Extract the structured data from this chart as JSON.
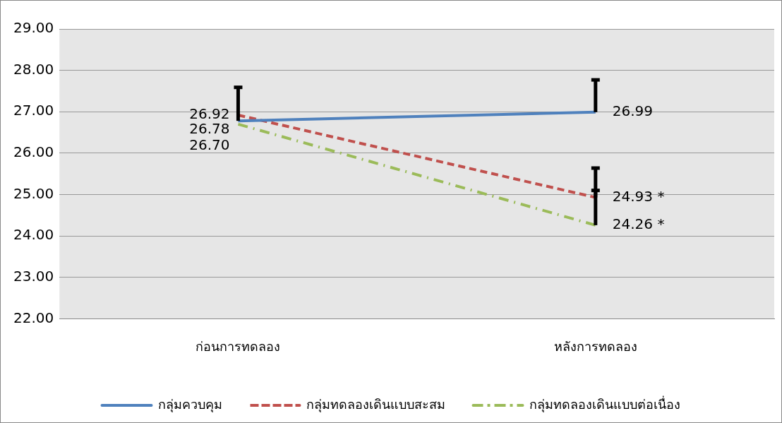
{
  "chart_data": {
    "type": "line",
    "categories": [
      "ก่อนการทดลอง",
      "หลังการทดลอง"
    ],
    "series": [
      {
        "name": "กลุ่มควบคุม",
        "color": "#4f81bd",
        "line_style": "solid",
        "values": [
          26.78,
          26.99
        ],
        "value_labels": [
          "26.78",
          "26.99"
        ],
        "errors": [
          [
            26.78,
            27.59
          ],
          [
            26.99,
            27.77
          ]
        ]
      },
      {
        "name": "กลุ่มทดลองเดินแบบสะสม",
        "color": "#c0504d",
        "line_style": "dashed",
        "values": [
          26.92,
          24.93
        ],
        "value_labels": [
          "26.92",
          "24.93 *"
        ],
        "errors": [
          null,
          [
            24.93,
            25.64
          ]
        ]
      },
      {
        "name": "กลุ่มทดลองเดินแบบต่อเนื่อง",
        "color": "#9bbb59",
        "line_style": "dashdot",
        "values": [
          26.7,
          24.26
        ],
        "value_labels": [
          "26.70",
          "24.26 *"
        ],
        "errors": [
          null,
          [
            24.26,
            25.1
          ]
        ]
      }
    ],
    "ylim": [
      22,
      29
    ],
    "yticks": [
      {
        "value": 22,
        "label": "22.00"
      },
      {
        "value": 23,
        "label": "23.00"
      },
      {
        "value": 24,
        "label": "24.00"
      },
      {
        "value": 25,
        "label": "25.00"
      },
      {
        "value": 26,
        "label": "26.00"
      },
      {
        "value": 27,
        "label": "27.00"
      },
      {
        "value": 28,
        "label": "28.00"
      },
      {
        "value": 29,
        "label": "29.00"
      }
    ],
    "grid": "y",
    "legend": "bottom",
    "marker": "none"
  }
}
